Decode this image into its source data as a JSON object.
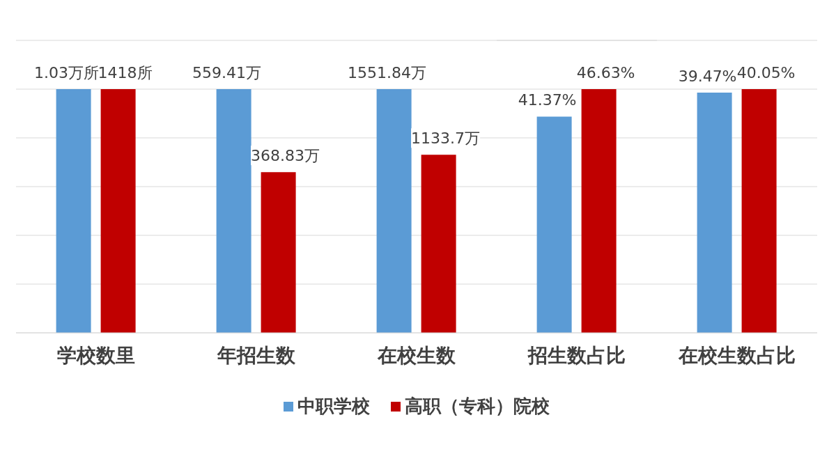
{
  "chart_data": [
    {
      "type": "bar",
      "categories": [
        "学校数里"
      ],
      "grid": "y",
      "series": [
        {
          "color": "#5b9bd5",
          "values": [
            1.03
          ],
          "value_labels": [
            "1.03万所"
          ]
        },
        {
          "color": "#c00000",
          "values": [
            1418
          ],
          "value_labels": [
            "1418所"
          ],
          "axis": "y2"
        }
      ]
    },
    {
      "type": "bar",
      "categories": [
        "年招生数"
      ],
      "grid": "y",
      "series": [
        {
          "color": "#5b9bd5",
          "values": [
            559.41
          ],
          "value_labels": [
            "559.41万"
          ]
        },
        {
          "color": "#c00000",
          "values": [
            368.83
          ],
          "value_labels": [
            "368.83万"
          ]
        }
      ]
    },
    {
      "type": "bar",
      "categories": [
        "在校生数"
      ],
      "grid": "y",
      "legend": "bottom",
      "series": [
        {
          "name": "中职学校",
          "color": "#5b9bd5",
          "values": [
            1551.84
          ],
          "value_labels": [
            "1551.84万"
          ]
        },
        {
          "name": "高职（专科）院校",
          "color": "#c00000",
          "values": [
            1133.7
          ],
          "value_labels": [
            "1133.7万"
          ]
        }
      ]
    },
    {
      "type": "bar",
      "categories": [
        "招生数占比"
      ],
      "grid": "y",
      "series": [
        {
          "color": "#5b9bd5",
          "values": [
            41.37
          ],
          "value_labels": [
            "41.37%"
          ]
        },
        {
          "color": "#c00000",
          "values": [
            46.63
          ],
          "value_labels": [
            "46.63%"
          ]
        }
      ]
    },
    {
      "type": "bar",
      "categories": [
        "在校生数占比"
      ],
      "grid": "y",
      "series": [
        {
          "color": "#5b9bd5",
          "values": [
            39.47
          ],
          "value_labels": [
            "39.47%"
          ]
        },
        {
          "color": "#c00000",
          "values": [
            40.05
          ],
          "value_labels": [
            "40.05%"
          ]
        }
      ]
    }
  ]
}
